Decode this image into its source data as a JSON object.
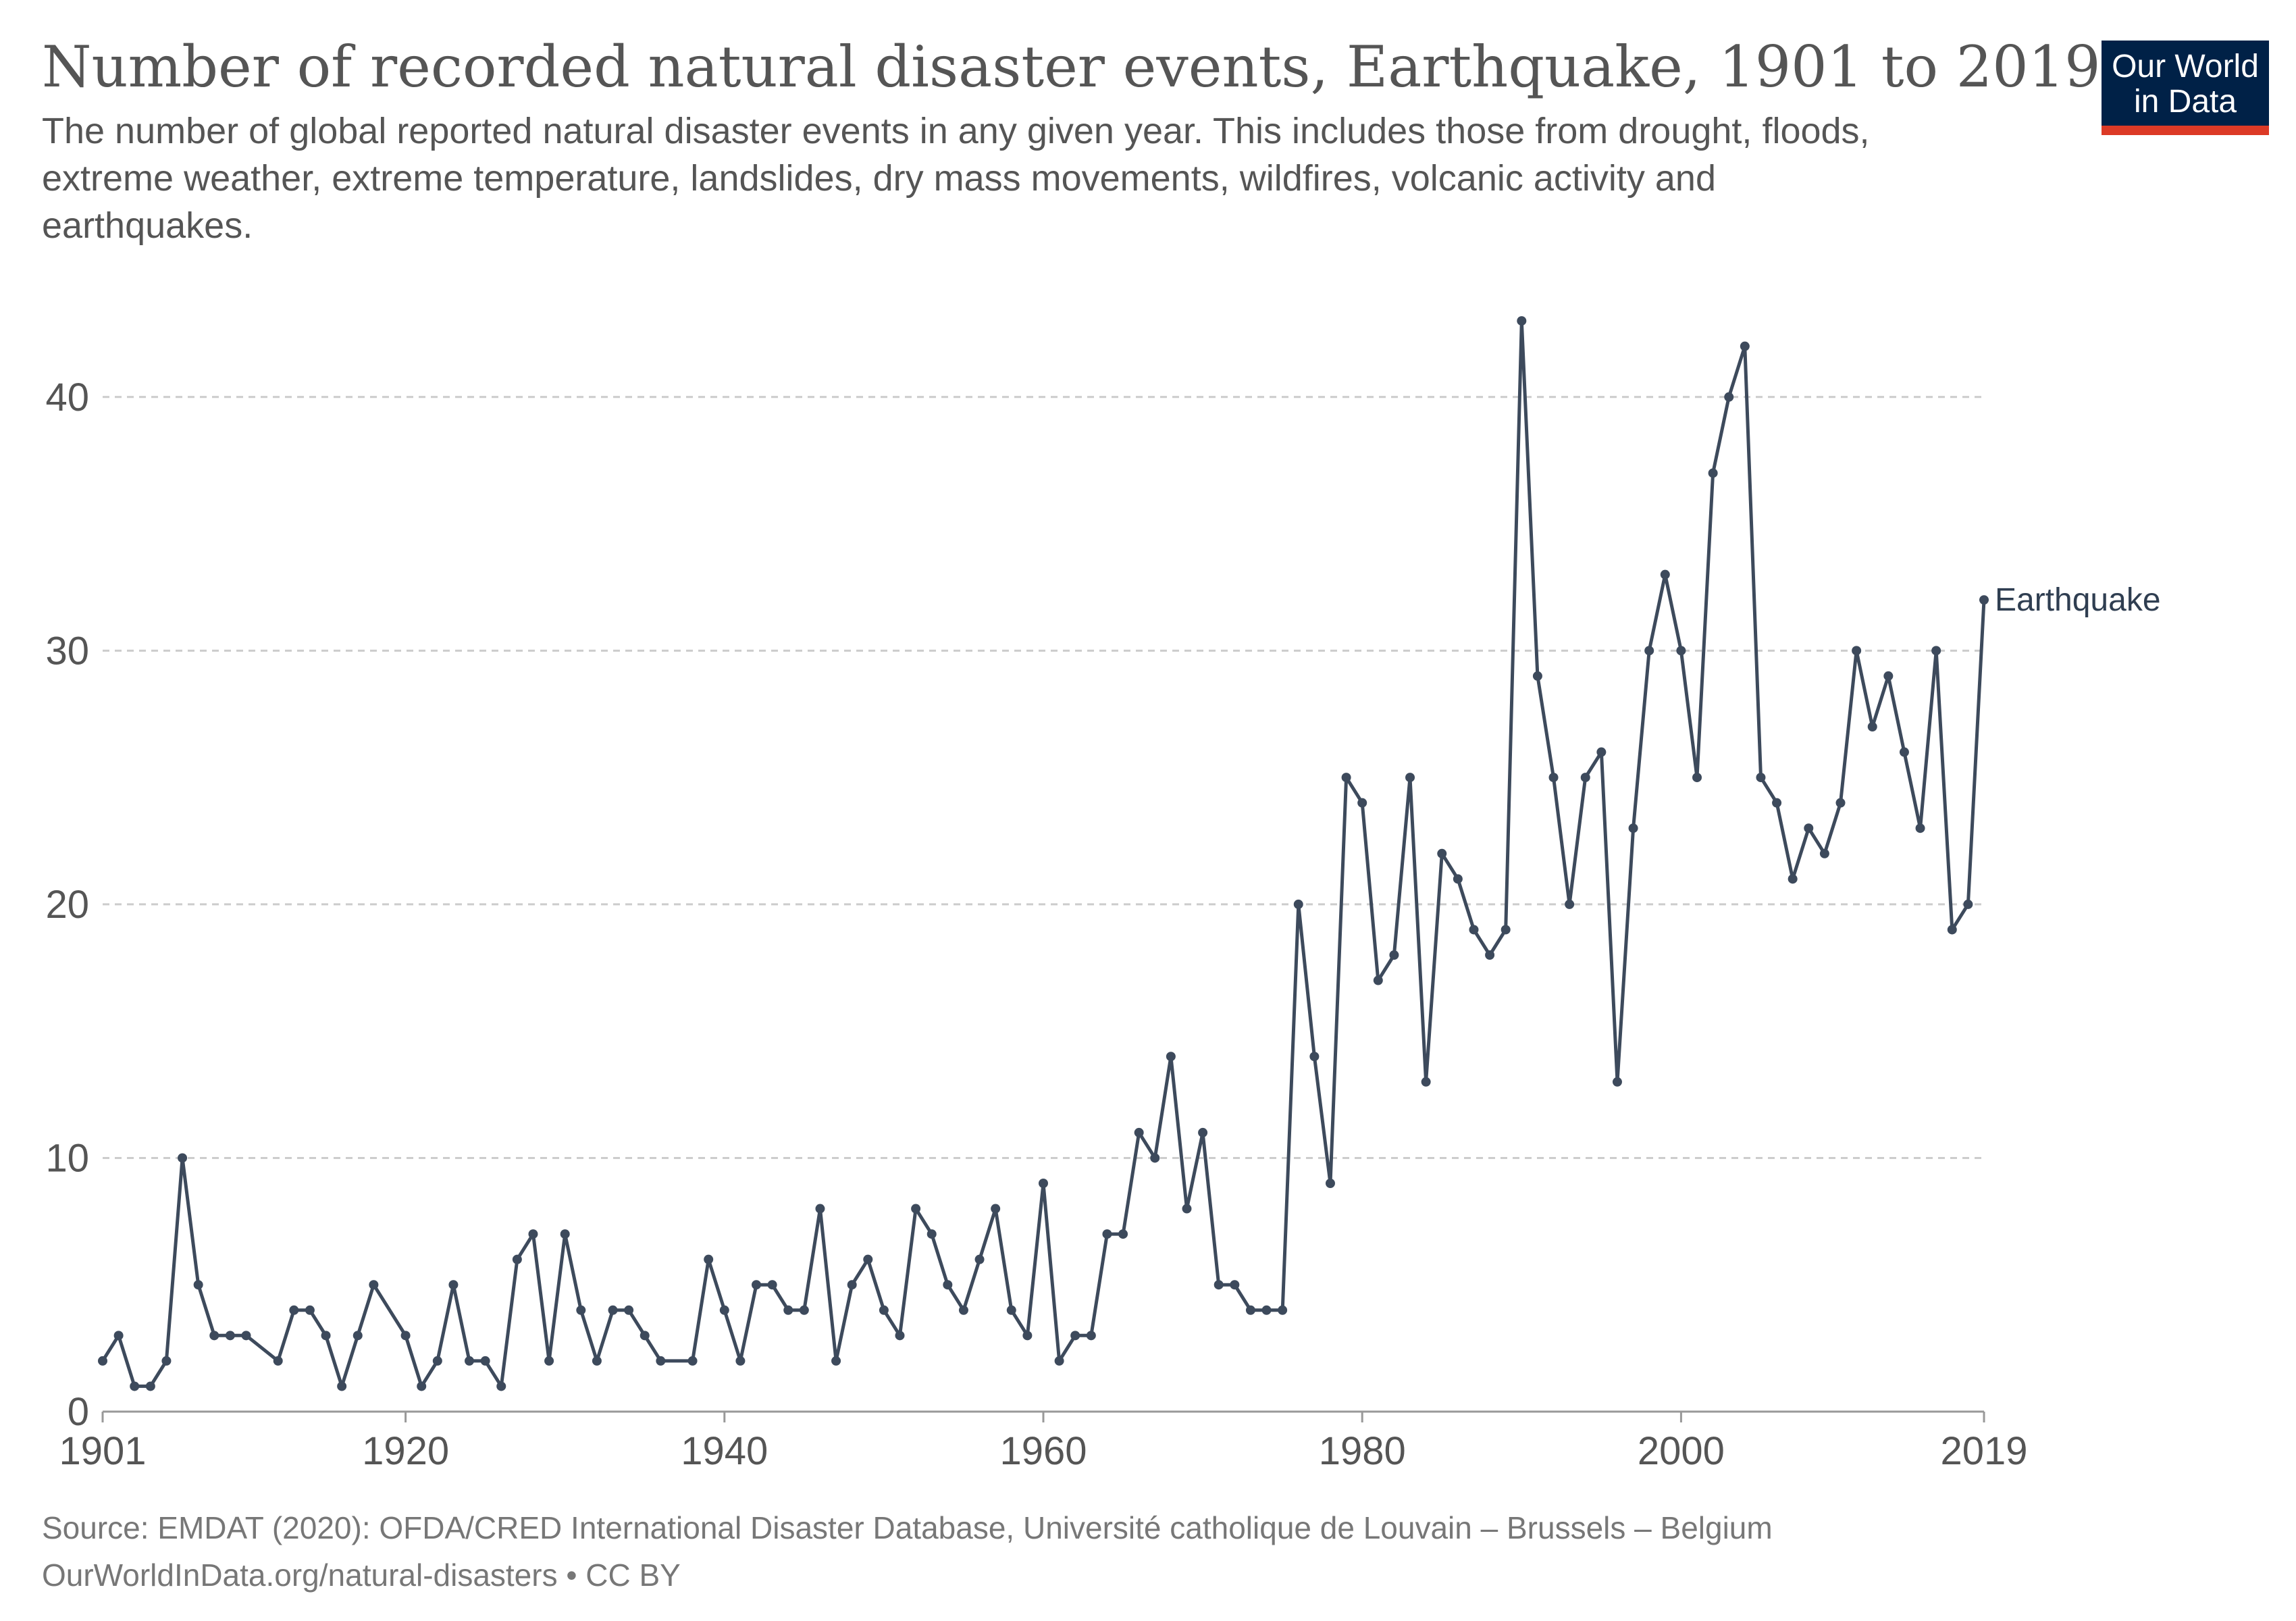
{
  "logo": {
    "line1": "Our World",
    "line2": "in Data",
    "bg_color": "#002147",
    "accent_color": "#dc3a26"
  },
  "footer": {
    "source": "Source: EMDAT (2020): OFDA/CRED International Disaster Database, Université catholique de Louvain – Brussels – Belgium",
    "url": "OurWorldInData.org/natural-disasters • CC BY"
  },
  "chart_data": {
    "type": "line",
    "title": "Number of recorded natural disaster events, Earthquake, 1901 to 2019",
    "subtitle_lines": [
      "The number of global reported natural disaster events in any given year. This includes those from drought, floods,",
      "extreme weather, extreme temperature, landslides, dry mass movements, wildfires, volcanic activity and",
      "earthquakes."
    ],
    "xlabel": "",
    "ylabel": "",
    "xlim": [
      1901,
      2019
    ],
    "ylim": [
      0,
      45
    ],
    "x_ticks": [
      1901,
      1920,
      1940,
      1960,
      1980,
      2000,
      2019
    ],
    "y_ticks": [
      0,
      10,
      20,
      30,
      40
    ],
    "grid": true,
    "line_color": "#3d4a5c",
    "series": [
      {
        "name": "Earthquake",
        "points": [
          [
            1901,
            2
          ],
          [
            1902,
            3
          ],
          [
            1903,
            1
          ],
          [
            1904,
            1
          ],
          [
            1905,
            2
          ],
          [
            1906,
            10
          ],
          [
            1907,
            5
          ],
          [
            1908,
            3
          ],
          [
            1909,
            3
          ],
          [
            1910,
            3
          ],
          [
            1912,
            2
          ],
          [
            1913,
            4
          ],
          [
            1914,
            4
          ],
          [
            1915,
            3
          ],
          [
            1916,
            1
          ],
          [
            1917,
            3
          ],
          [
            1918,
            5
          ],
          [
            1920,
            3
          ],
          [
            1921,
            1
          ],
          [
            1922,
            2
          ],
          [
            1923,
            5
          ],
          [
            1924,
            2
          ],
          [
            1925,
            2
          ],
          [
            1926,
            1
          ],
          [
            1927,
            6
          ],
          [
            1928,
            7
          ],
          [
            1929,
            2
          ],
          [
            1930,
            7
          ],
          [
            1931,
            4
          ],
          [
            1932,
            2
          ],
          [
            1933,
            4
          ],
          [
            1934,
            4
          ],
          [
            1935,
            3
          ],
          [
            1936,
            2
          ],
          [
            1938,
            2
          ],
          [
            1939,
            6
          ],
          [
            1940,
            4
          ],
          [
            1941,
            2
          ],
          [
            1942,
            5
          ],
          [
            1943,
            5
          ],
          [
            1944,
            4
          ],
          [
            1945,
            4
          ],
          [
            1946,
            8
          ],
          [
            1947,
            2
          ],
          [
            1948,
            5
          ],
          [
            1949,
            6
          ],
          [
            1950,
            4
          ],
          [
            1951,
            3
          ],
          [
            1952,
            8
          ],
          [
            1953,
            7
          ],
          [
            1954,
            5
          ],
          [
            1955,
            4
          ],
          [
            1956,
            6
          ],
          [
            1957,
            8
          ],
          [
            1958,
            4
          ],
          [
            1959,
            3
          ],
          [
            1960,
            9
          ],
          [
            1961,
            2
          ],
          [
            1962,
            3
          ],
          [
            1963,
            3
          ],
          [
            1964,
            7
          ],
          [
            1965,
            7
          ],
          [
            1966,
            11
          ],
          [
            1967,
            10
          ],
          [
            1968,
            14
          ],
          [
            1969,
            8
          ],
          [
            1970,
            11
          ],
          [
            1971,
            5
          ],
          [
            1972,
            5
          ],
          [
            1973,
            4
          ],
          [
            1974,
            4
          ],
          [
            1975,
            4
          ],
          [
            1976,
            20
          ],
          [
            1977,
            14
          ],
          [
            1978,
            9
          ],
          [
            1979,
            25
          ],
          [
            1980,
            24
          ],
          [
            1981,
            17
          ],
          [
            1982,
            18
          ],
          [
            1983,
            25
          ],
          [
            1984,
            13
          ],
          [
            1985,
            22
          ],
          [
            1986,
            21
          ],
          [
            1987,
            19
          ],
          [
            1988,
            18
          ],
          [
            1989,
            19
          ],
          [
            1990,
            43
          ],
          [
            1991,
            29
          ],
          [
            1992,
            25
          ],
          [
            1993,
            20
          ],
          [
            1994,
            25
          ],
          [
            1995,
            26
          ],
          [
            1996,
            13
          ],
          [
            1997,
            23
          ],
          [
            1998,
            30
          ],
          [
            1999,
            33
          ],
          [
            2000,
            30
          ],
          [
            2001,
            25
          ],
          [
            2002,
            37
          ],
          [
            2003,
            40
          ],
          [
            2004,
            42
          ],
          [
            2005,
            25
          ],
          [
            2006,
            24
          ],
          [
            2007,
            21
          ],
          [
            2008,
            23
          ],
          [
            2009,
            22
          ],
          [
            2010,
            24
          ],
          [
            2011,
            30
          ],
          [
            2012,
            27
          ],
          [
            2013,
            29
          ],
          [
            2014,
            26
          ],
          [
            2015,
            23
          ],
          [
            2016,
            30
          ],
          [
            2017,
            19
          ],
          [
            2018,
            20
          ],
          [
            2019,
            32
          ]
        ]
      }
    ]
  }
}
